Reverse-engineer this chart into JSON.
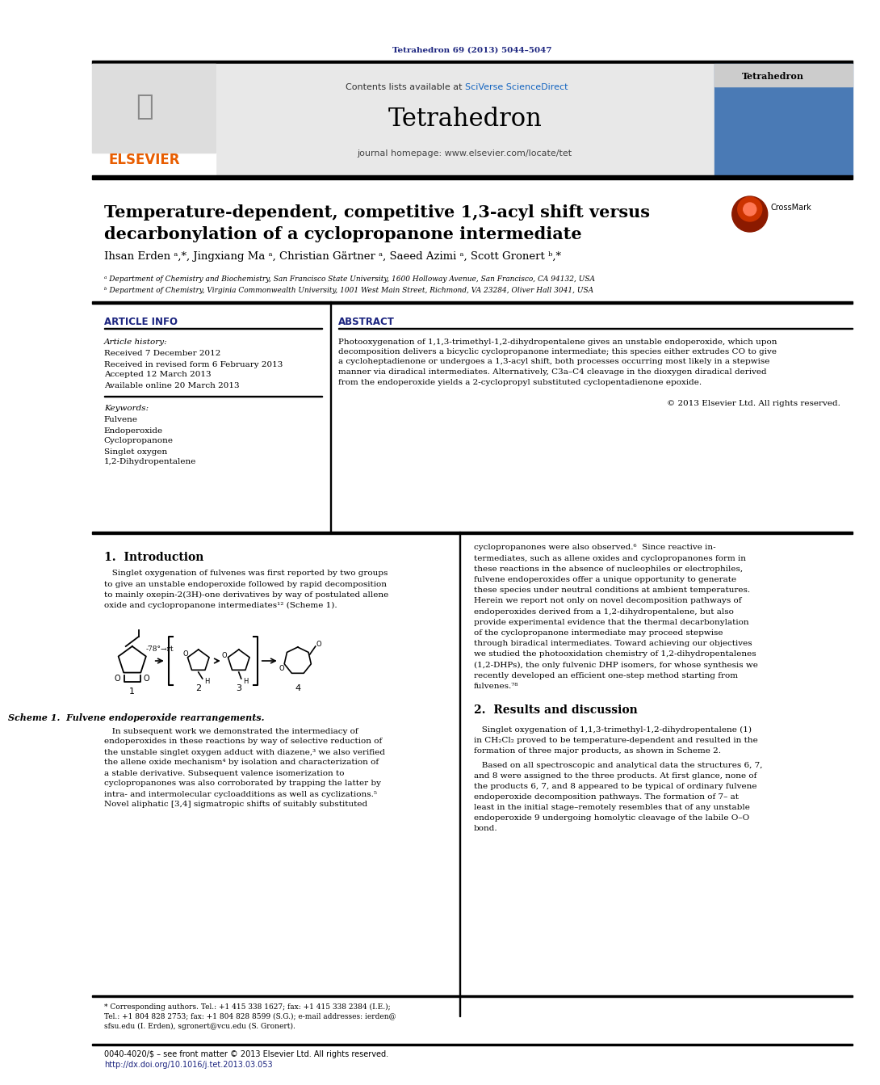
{
  "page_bg": "#ffffff",
  "top_citation": "Tetrahedron 69 (2013) 5044–5047",
  "top_citation_color": "#1a237e",
  "journal_title": "Tetrahedron",
  "journal_subtitle": "journal homepage: www.elsevier.com/locate/tet",
  "contents_text": "Contents lists available at ",
  "contents_sciverse": "SciVerse ScienceDirect",
  "header_bg": "#e8e8e8",
  "article_title_line1": "Temperature-dependent, competitive 1,3-acyl shift versus",
  "article_title_line2": "decarbonylation of a cyclopropanone intermediate",
  "authors": "Ihsan Erden ᵃ,*, Jingxiang Ma ᵃ, Christian Gärtner ᵃ, Saeed Azimi ᵃ, Scott Gronert ᵇ,*",
  "affil_a": "ᵃ Department of Chemistry and Biochemistry, San Francisco State University, 1600 Holloway Avenue, San Francisco, CA 94132, USA",
  "affil_b": "ᵇ Department of Chemistry, Virginia Commonwealth University, 1001 West Main Street, Richmond, VA 23284, Oliver Hall 3041, USA",
  "section_article_info": "ARTICLE INFO",
  "section_abstract": "ABSTRACT",
  "article_history_label": "Article history:",
  "received": "Received 7 December 2012",
  "received_revised": "Received in revised form 6 February 2013",
  "accepted": "Accepted 12 March 2013",
  "available": "Available online 20 March 2013",
  "keywords_label": "Keywords:",
  "keywords": [
    "Fulvene",
    "Endoperoxide",
    "Cyclopropanone",
    "Singlet oxygen",
    "1,2-Dihydropentalene"
  ],
  "abstract_lines": [
    "Photooxygenation of 1,1,3-trimethyl-1,2-dihydropentalene gives an unstable endoperoxide, which upon",
    "decomposition delivers a bicyclic cyclopropanone intermediate; this species either extrudes CO to give",
    "a cycloheptadienone or undergoes a 1,3-acyl shift, both processes occurring most likely in a stepwise",
    "manner via diradical intermediates. Alternatively, C3a–C4 cleavage in the dioxygen diradical derived",
    "from the endoperoxide yields a 2-cyclopropyl substituted cyclopentadienone epoxide."
  ],
  "copyright": "© 2013 Elsevier Ltd. All rights reserved.",
  "intro_heading": "1.  Introduction",
  "intro_para_lines": [
    "   Singlet oxygenation of fulvenes was first reported by two groups",
    "to give an unstable endoperoxide followed by rapid decomposition",
    "to mainly oxepin-2(3H)-one derivatives by way of postulated allene",
    "oxide and cyclopropanone intermediates¹² (Scheme 1)."
  ],
  "scheme_caption": "Scheme 1.  Fulvene endoperoxide rearrangements.",
  "subseq_lines": [
    "   In subsequent work we demonstrated the intermediacy of",
    "endoperoxides in these reactions by way of selective reduction of",
    "the unstable singlet oxygen adduct with diazene,³ we also verified",
    "the allene oxide mechanism⁴ by isolation and characterization of",
    "a stable derivative. Subsequent valence isomerization to",
    "cyclopropanones was also corroborated by trapping the latter by",
    "intra- and intermolecular cycloadditions as well as cyclizations.⁵",
    "Novel aliphatic [3,4] sigmatropic shifts of suitably substituted"
  ],
  "right_intro_lines": [
    "cyclopropanones were also observed.⁶  Since reactive in-",
    "termediates, such as allene oxides and cyclopropanones form in",
    "these reactions in the absence of nucleophiles or electrophiles,",
    "fulvene endoperoxides offer a unique opportunity to generate",
    "these species under neutral conditions at ambient temperatures.",
    "Herein we report not only on novel decomposition pathways of",
    "endoperoxides derived from a 1,2-dihydropentalene, but also",
    "provide experimental evidence that the thermal decarbonylation",
    "of the cyclopropanone intermediate may proceed stepwise",
    "through biradical intermediates. Toward achieving our objectives",
    "we studied the photooxidation chemistry of 1,2-dihydropentalenes",
    "(1,2-DHPs), the only fulvenic DHP isomers, for whose synthesis we",
    "recently developed an efficient one-step method starting from",
    "fulvenes.⁷⁸"
  ],
  "results_heading": "2.  Results and discussion",
  "results_lines": [
    "   Singlet oxygenation of 1,1,3-trimethyl-1,2-dihydropentalene (1)",
    "in CH₂Cl₂ proved to be temperature-dependent and resulted in the",
    "formation of three major products, as shown in Scheme 2."
  ],
  "results_lines2": [
    "   Based on all spectroscopic and analytical data the structures 6, 7,",
    "and 8 were assigned to the three products. At first glance, none of",
    "the products 6, 7, and 8 appeared to be typical of ordinary fulvene",
    "endoperoxide decomposition pathways. The formation of 7– at",
    "least in the initial stage–remotely resembles that of any unstable",
    "endoperoxide 9 undergoing homolytic cleavage of the labile O–O",
    "bond."
  ],
  "footnote_star": "* Corresponding authors. Tel.: +1 415 338 1627; fax: +1 415 338 2384 (I.E.);",
  "footnote_line2": "Tel.: +1 804 828 2753; fax: +1 804 828 8599 (S.G.); e-mail addresses: ierden@",
  "footnote_line3": "sfsu.edu (I. Erden), sgronert@vcu.edu (S. Gronert).",
  "footer_line1": "0040-4020/$ – see front matter © 2013 Elsevier Ltd. All rights reserved.",
  "footer_line2": "http://dx.doi.org/10.1016/j.tet.2013.03.053",
  "orange_color": "#e85d00",
  "blue_link_color": "#1a237e",
  "sciverse_blue": "#1565c0",
  "section_header_color": "#1a237e"
}
